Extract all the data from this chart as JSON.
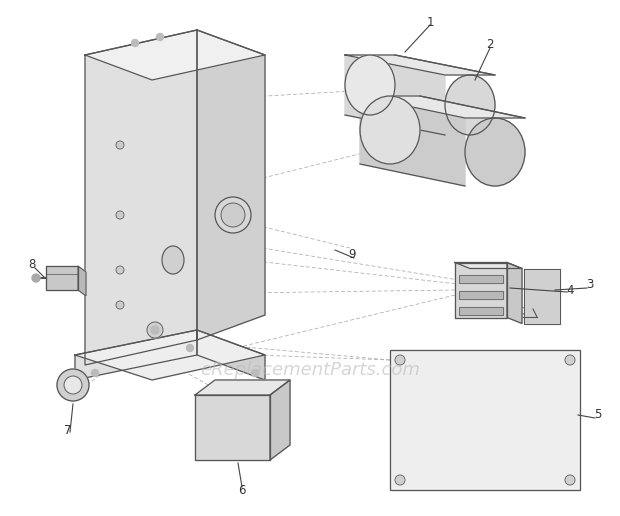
{
  "background_color": "#ffffff",
  "line_color": "#555555",
  "watermark": "eReplacementParts.com",
  "watermark_color": "#bbbbbb",
  "watermark_fontsize": 13,
  "lw_main": 0.9,
  "lw_dash": 0.55
}
